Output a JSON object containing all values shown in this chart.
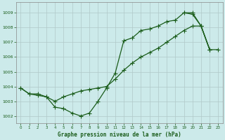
{
  "title": "Graphe pression niveau de la mer (hPa)",
  "bg_color": "#cceaea",
  "grid_color": "#b0c8c8",
  "line_color": "#1a5c1a",
  "marker_color": "#1a5c1a",
  "xlim": [
    -0.5,
    23.5
  ],
  "ylim": [
    1001.5,
    1009.7
  ],
  "yticks": [
    1002,
    1003,
    1004,
    1005,
    1006,
    1007,
    1008,
    1009
  ],
  "xticks": [
    0,
    1,
    2,
    3,
    4,
    5,
    6,
    7,
    8,
    9,
    10,
    11,
    12,
    13,
    14,
    15,
    16,
    17,
    18,
    19,
    20,
    21,
    22,
    23
  ],
  "series1_x": [
    0,
    1,
    2,
    3,
    4,
    5,
    6,
    7,
    8,
    9,
    10,
    11,
    12,
    13,
    14,
    15,
    16,
    17,
    18,
    19,
    20,
    21,
    22
  ],
  "series1_y": [
    1003.9,
    1003.5,
    1003.5,
    1003.3,
    1002.6,
    1002.5,
    1002.2,
    1002.0,
    1002.2,
    1003.0,
    1003.9,
    1004.9,
    1007.1,
    1007.3,
    1007.8,
    1007.9,
    1008.1,
    1008.4,
    1008.5,
    1009.0,
    1009.0,
    1008.1,
    1006.5
  ],
  "series2_x": [
    0,
    1,
    2,
    3,
    4,
    5,
    6,
    7,
    8,
    9,
    10,
    11,
    12,
    13,
    14,
    15,
    16,
    17,
    18,
    19,
    20,
    21,
    22
  ],
  "series2_y": [
    1003.9,
    1003.5,
    1003.4,
    1003.3,
    1003.0,
    1003.3,
    1003.5,
    1003.7,
    1003.8,
    1003.9,
    1004.0,
    1004.5,
    1005.1,
    1005.6,
    1006.0,
    1006.3,
    1006.6,
    1007.0,
    1007.4,
    1007.8,
    1008.1,
    1008.1,
    1006.5
  ],
  "series3_x": [
    19,
    20,
    21,
    22,
    23
  ],
  "series3_y": [
    1009.0,
    1008.9,
    1008.1,
    1006.5,
    1006.5
  ]
}
